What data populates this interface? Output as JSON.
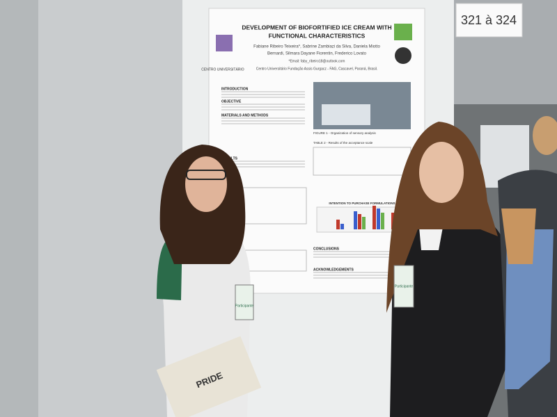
{
  "sign": "321 à 324",
  "poster": {
    "title": [
      "DEVELOPMENT OF BIOFORTIFIED ICE CREAM WITH",
      "FUNCTIONAL CHARACTERISTICS"
    ],
    "authors": [
      "Fabiane Ribeiro Teixeira*, Sabrine Zambiazi da Silva, Daniela Miotto",
      "Bernardi, Silmara Dayane Fiorentin, Frederico Lovato"
    ],
    "email": "*Email: faby_ribeiro18@outlook.com",
    "institution": "Centro Universitário Fundação Assis Gurgacz - FAG, Cascavel, Paraná, Brasil.",
    "logo_text": "CENTRO UNIVERSITÁRIO",
    "sections": [
      "INTRODUCTION",
      "OBJECTIVE",
      "MATERIALS AND METHODS",
      "RESULTS",
      "CONCLUSIONS",
      "ACKNOWLEDGEMENTS"
    ],
    "figure_caption": "FIGURE 1 - Organization of sensory analysis",
    "table_caption": "TABLE 2 - Results of the acceptance scale",
    "chart_title": "INTENTION TO PURCHASE FORMULATIONS"
  },
  "badge": "Participante",
  "book": "PRIDE"
}
